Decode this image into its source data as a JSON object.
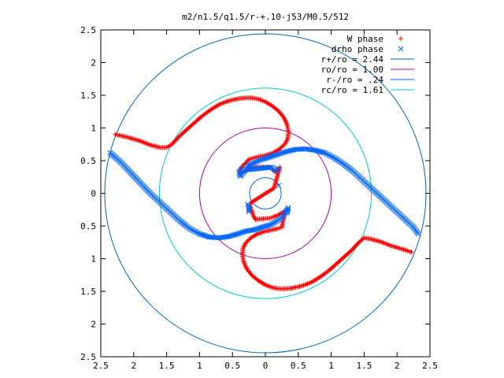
{
  "chart_data": {
    "type": "scatter",
    "title": "m2/n1.5/q1.5/r-+.10-j53/M0.5/512",
    "xlabel": "",
    "ylabel": "",
    "xlim": [
      -2.5,
      2.5
    ],
    "ylim": [
      -2.5,
      2.5
    ],
    "xticks": [
      -2.5,
      -2,
      -1.5,
      -1,
      -0.5,
      0,
      0.5,
      1,
      1.5,
      2,
      2.5
    ],
    "yticks": [
      -2.5,
      -2,
      -1.5,
      -1,
      -0.5,
      0,
      0.5,
      1,
      1.5,
      2,
      2.5
    ],
    "xtick_labels": [
      "2.5",
      "2",
      "1.5",
      "1",
      "0.5",
      "0",
      "0.5",
      "1",
      "1.5",
      "2",
      "2.5"
    ],
    "ytick_labels": [
      "2.5",
      "2",
      "1.5",
      "1",
      "0.5",
      "0",
      "0.5",
      "1",
      "1.5",
      "2",
      "2.5"
    ],
    "grid": false,
    "legend_position": "top-right",
    "series": [
      {
        "name": "W phase",
        "marker": "plus",
        "color": "#ff0000",
        "points": [
          [
            -2.28,
            0.9
          ],
          [
            -2.1,
            0.86
          ],
          [
            -1.9,
            0.8
          ],
          [
            -1.75,
            0.74
          ],
          [
            -1.6,
            0.7
          ],
          [
            -1.5,
            0.7
          ],
          [
            -1.42,
            0.75
          ],
          [
            -1.3,
            0.88
          ],
          [
            -1.2,
            0.97
          ],
          [
            -1.1,
            1.06
          ],
          [
            -1.0,
            1.15
          ],
          [
            -0.9,
            1.23
          ],
          [
            -0.8,
            1.3
          ],
          [
            -0.7,
            1.36
          ],
          [
            -0.6,
            1.4
          ],
          [
            -0.5,
            1.43
          ],
          [
            -0.4,
            1.45
          ],
          [
            -0.3,
            1.46
          ],
          [
            -0.2,
            1.46
          ],
          [
            -0.1,
            1.44
          ],
          [
            0.0,
            1.4
          ],
          [
            0.1,
            1.34
          ],
          [
            0.2,
            1.26
          ],
          [
            0.28,
            1.16
          ],
          [
            0.33,
            1.05
          ],
          [
            0.35,
            0.94
          ],
          [
            0.34,
            0.84
          ],
          [
            0.3,
            0.76
          ],
          [
            0.22,
            0.68
          ],
          [
            0.12,
            0.62
          ],
          [
            0.0,
            0.58
          ],
          [
            -0.1,
            0.56
          ],
          [
            -0.18,
            0.54
          ],
          [
            -0.25,
            0.52
          ],
          [
            -0.38,
            0.38
          ],
          [
            -0.4,
            0.33
          ],
          [
            -0.38,
            0.3
          ],
          [
            -0.28,
            0.36
          ],
          [
            -0.25,
            0.4
          ],
          [
            0.07,
            0.4
          ],
          [
            0.1,
            0.37
          ],
          [
            0.15,
            0.33
          ],
          [
            0.2,
            0.37
          ],
          [
            0.22,
            0.4
          ],
          [
            0.13,
            0.08
          ],
          [
            -0.23,
            -0.15
          ],
          [
            -0.23,
            -0.2
          ],
          [
            -0.18,
            -0.35
          ],
          [
            -0.15,
            -0.4
          ],
          [
            0.07,
            -0.38
          ],
          [
            0.12,
            -0.36
          ],
          [
            0.18,
            -0.34
          ],
          [
            0.25,
            -0.3
          ],
          [
            0.3,
            -0.27
          ],
          [
            0.25,
            -0.52
          ],
          [
            0.18,
            -0.54
          ],
          [
            0.1,
            -0.56
          ],
          [
            0.0,
            -0.58
          ],
          [
            -0.12,
            -0.62
          ],
          [
            -0.22,
            -0.68
          ],
          [
            -0.3,
            -0.76
          ],
          [
            -0.34,
            -0.84
          ],
          [
            -0.35,
            -0.94
          ],
          [
            -0.33,
            -1.05
          ],
          [
            -0.28,
            -1.16
          ],
          [
            -0.2,
            -1.26
          ],
          [
            -0.1,
            -1.34
          ],
          [
            0.0,
            -1.4
          ],
          [
            0.1,
            -1.44
          ],
          [
            0.2,
            -1.46
          ],
          [
            0.3,
            -1.46
          ],
          [
            0.4,
            -1.45
          ],
          [
            0.5,
            -1.43
          ],
          [
            0.6,
            -1.4
          ],
          [
            0.7,
            -1.36
          ],
          [
            0.8,
            -1.3
          ],
          [
            0.9,
            -1.23
          ],
          [
            1.0,
            -1.15
          ],
          [
            1.1,
            -1.06
          ],
          [
            1.2,
            -0.97
          ],
          [
            1.3,
            -0.88
          ],
          [
            1.42,
            -0.75
          ],
          [
            1.5,
            -0.68
          ],
          [
            1.6,
            -0.7
          ],
          [
            1.75,
            -0.74
          ],
          [
            1.9,
            -0.8
          ],
          [
            2.1,
            -0.86
          ],
          [
            2.22,
            -0.9
          ]
        ]
      },
      {
        "name": "drho phase",
        "marker": "cross",
        "color": "#0066ff",
        "points": [
          [
            -2.36,
            0.62
          ],
          [
            -2.2,
            0.48
          ],
          [
            -2.05,
            0.32
          ],
          [
            -1.9,
            0.16
          ],
          [
            -1.75,
            0.0
          ],
          [
            -1.6,
            -0.14
          ],
          [
            -1.45,
            -0.28
          ],
          [
            -1.3,
            -0.42
          ],
          [
            -1.15,
            -0.54
          ],
          [
            -1.0,
            -0.62
          ],
          [
            -0.85,
            -0.67
          ],
          [
            -0.7,
            -0.68
          ],
          [
            -0.55,
            -0.66
          ],
          [
            -0.42,
            -0.62
          ],
          [
            -0.3,
            -0.58
          ],
          [
            -0.18,
            -0.56
          ],
          [
            -0.05,
            -0.52
          ],
          [
            0.08,
            -0.48
          ],
          [
            0.18,
            -0.42
          ],
          [
            0.26,
            -0.36
          ],
          [
            0.3,
            -0.3
          ],
          [
            0.32,
            -0.26
          ],
          [
            0.35,
            -0.22
          ],
          [
            0.33,
            -0.3
          ],
          [
            -0.35,
            0.38
          ],
          [
            -0.4,
            0.32
          ],
          [
            -0.38,
            0.26
          ],
          [
            -0.3,
            0.36
          ],
          [
            0.1,
            0.4
          ],
          [
            0.16,
            0.34
          ],
          [
            0.2,
            0.38
          ],
          [
            -0.28,
            0.42
          ],
          [
            -0.15,
            0.48
          ],
          [
            -0.05,
            0.52
          ],
          [
            0.08,
            0.56
          ],
          [
            0.2,
            0.6
          ],
          [
            0.32,
            0.64
          ],
          [
            0.45,
            0.67
          ],
          [
            0.6,
            0.68
          ],
          [
            0.75,
            0.66
          ],
          [
            0.9,
            0.62
          ],
          [
            1.05,
            0.54
          ],
          [
            1.2,
            0.44
          ],
          [
            1.35,
            0.32
          ],
          [
            1.5,
            0.18
          ],
          [
            1.65,
            0.04
          ],
          [
            1.8,
            -0.1
          ],
          [
            1.95,
            -0.24
          ],
          [
            2.1,
            -0.38
          ],
          [
            2.25,
            -0.52
          ],
          [
            2.32,
            -0.62
          ],
          [
            -0.27,
            -0.17
          ],
          [
            -0.25,
            -0.22
          ],
          [
            -0.25,
            -0.28
          ],
          [
            0.2,
            0.12
          ]
        ]
      },
      {
        "name": "r+/ro = 2.44",
        "type": "circle",
        "radius": 2.44,
        "color": "#0066aa"
      },
      {
        "name": "ro/ro = 1.00",
        "type": "circle",
        "radius": 1.0,
        "color": "#aa00aa"
      },
      {
        "name": "r-/ro = .24",
        "type": "circle",
        "radius": 0.24,
        "color": "#0066ff"
      },
      {
        "name": "rc/ro = 1.61",
        "type": "circle",
        "radius": 1.61,
        "color": "#00cccc"
      }
    ]
  }
}
